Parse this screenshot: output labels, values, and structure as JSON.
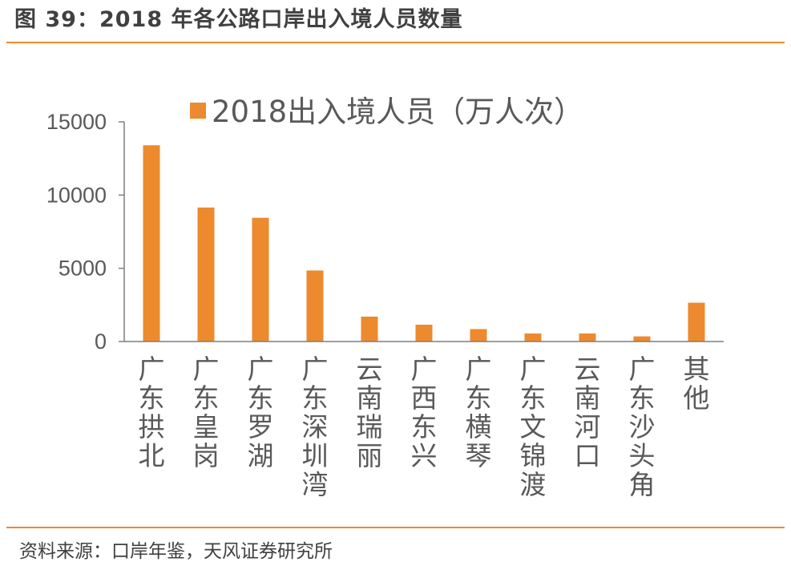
{
  "header": {
    "title": "图 39：2018 年各公路口岸出入境人员数量"
  },
  "footer": {
    "source": "资料来源：口岸年鉴，天风证券研究所"
  },
  "colors": {
    "accent": "#ED8A2E",
    "rule": "#ED8A2E",
    "axis": "#7f7f7f",
    "text": "#595959"
  },
  "chart_data": {
    "type": "bar",
    "title": "",
    "xlabel": "",
    "ylabel": "",
    "ylim": [
      0,
      15000
    ],
    "yticks": [
      "0",
      "5000",
      "10000",
      "15000"
    ],
    "grid": false,
    "legend": "top",
    "categories": [
      "广东拱北",
      "广东皇岗",
      "广东罗湖",
      "广东深圳湾",
      "云南瑞丽",
      "广西东兴",
      "广东横琴",
      "广东文锦渡",
      "云南河口",
      "广东沙头角",
      "其他"
    ],
    "series": [
      {
        "name": "2018出入境人员（万人次）",
        "values": [
          13400,
          9150,
          8450,
          4850,
          1700,
          1150,
          850,
          550,
          550,
          350,
          2650
        ]
      }
    ]
  }
}
